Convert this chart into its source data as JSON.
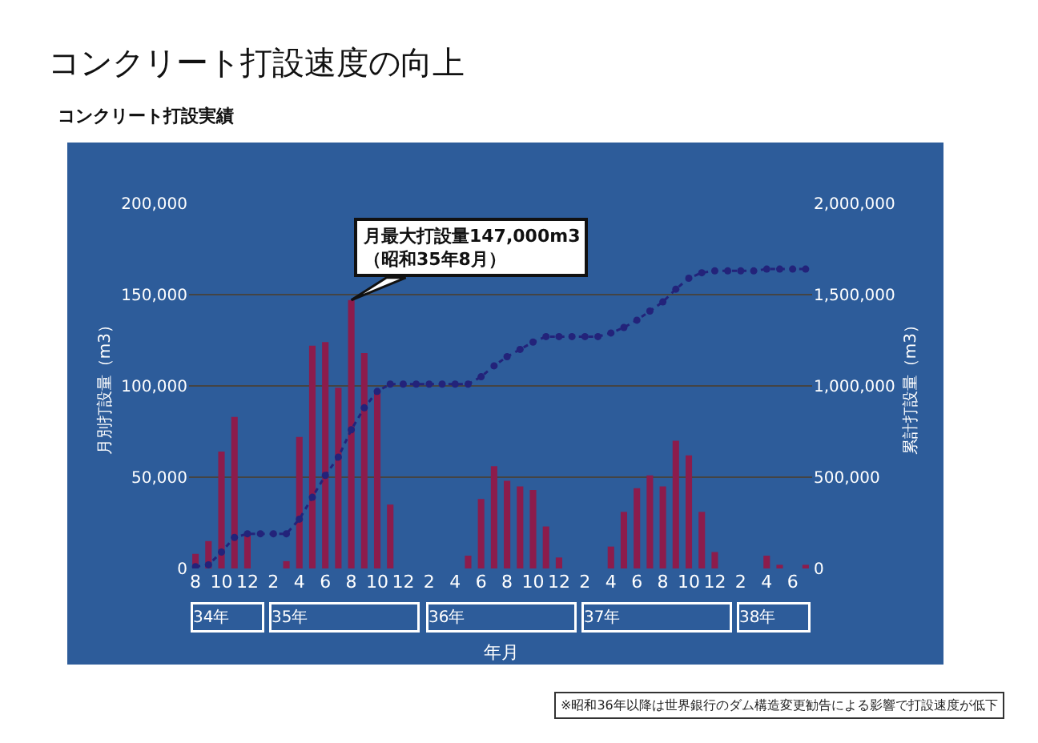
{
  "chart_data": {
    "type": "bar",
    "title": "コンクリート打設速度の向上",
    "subtitle": "コンクリート打設実績",
    "xlabel": "年月",
    "ylabel": "月別打設量（m3）",
    "y2label": "累計打設量（m3）",
    "categories": [
      "8",
      null,
      "10",
      null,
      "12",
      null,
      "2",
      null,
      "4",
      null,
      "6",
      null,
      "8",
      null,
      "10",
      null,
      "12",
      null,
      "2",
      null,
      "4",
      null,
      "6",
      null,
      "8",
      null,
      "10",
      null,
      "12",
      null,
      "2",
      null,
      "4",
      null,
      "6",
      null,
      "8",
      null,
      "10",
      null,
      "12",
      null,
      "2",
      null,
      "4",
      null,
      "6",
      null
    ],
    "series": [
      {
        "color": "#8c1c4c",
        "values": [
          8000,
          15000,
          64000,
          83000,
          19000,
          0,
          0,
          4000,
          72000,
          122000,
          124000,
          99000,
          147000,
          118000,
          97000,
          35000,
          0,
          0,
          0,
          0,
          0,
          7000,
          38000,
          56000,
          48000,
          45000,
          43000,
          23000,
          6000,
          0,
          0,
          0,
          12000,
          31000,
          44000,
          51000,
          45000,
          70000,
          62000,
          31000,
          9000,
          0,
          0,
          0,
          7000,
          2000,
          0,
          2000
        ]
      },
      {
        "type": "line",
        "axis": "y2",
        "color": "#23237a",
        "marker": "circle",
        "line_style": "dotted",
        "values": [
          10000,
          20000,
          90000,
          170000,
          190000,
          190000,
          190000,
          190000,
          270000,
          390000,
          510000,
          610000,
          760000,
          880000,
          970000,
          1010000,
          1010000,
          1010000,
          1010000,
          1010000,
          1010000,
          1010000,
          1050000,
          1110000,
          1160000,
          1200000,
          1240000,
          1270000,
          1270000,
          1270000,
          1270000,
          1270000,
          1290000,
          1320000,
          1360000,
          1410000,
          1460000,
          1530000,
          1590000,
          1620000,
          1630000,
          1630000,
          1630000,
          1630000,
          1640000,
          1640000,
          1640000,
          1640000
        ]
      }
    ],
    "ylim": [
      0,
      200000
    ],
    "yticks": [
      {
        "value": 0,
        "label": "0"
      },
      {
        "value": 50000,
        "label": "50,000"
      },
      {
        "value": 100000,
        "label": "100,000"
      },
      {
        "value": 150000,
        "label": "150,000"
      },
      {
        "value": 200000,
        "label": "200,000"
      }
    ],
    "y2lim": [
      0,
      2000000
    ],
    "y2ticks": [
      {
        "value": 0,
        "label": "0"
      },
      {
        "value": 500000,
        "label": "500,000"
      },
      {
        "value": 1000000,
        "label": "1,000,000"
      },
      {
        "value": 1500000,
        "label": "1,500,000"
      },
      {
        "value": 2000000,
        "label": "2,000,000"
      }
    ],
    "grid": "y",
    "legend": false,
    "annotations": [
      "34年",
      "35年",
      "36年",
      "37年",
      "38年",
      "月最大打設量147,000m3\n（昭和35年8月）",
      "※昭和36年以降は世界銀行のダム構造変更勧告による影響で打設速度が低下"
    ]
  }
}
